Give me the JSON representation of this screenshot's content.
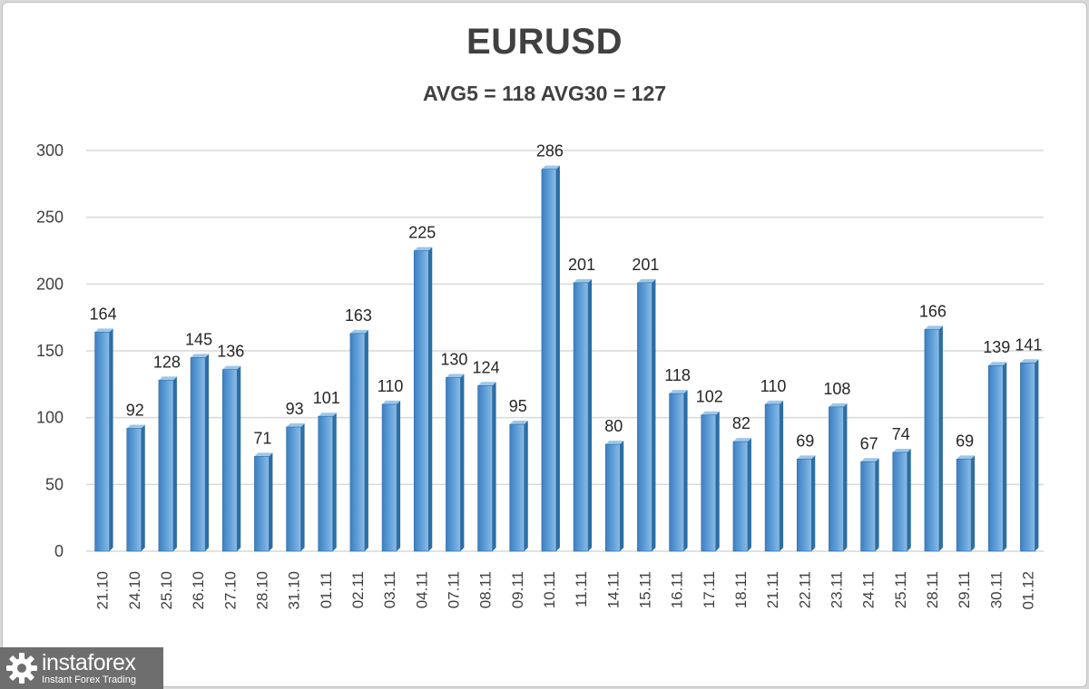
{
  "title": "EURUSD",
  "subtitle": "AVG5 = 118 AVG30 = 127",
  "logo": {
    "name": "instaforex",
    "tagline": "Instant Forex Trading"
  },
  "colors": {
    "bar": "#5b9bd5",
    "bar_dark": "#2e6da4",
    "grid": "#d9d9d9"
  },
  "chart_data": {
    "type": "bar",
    "title": "EURUSD",
    "subtitle": "AVG5 = 118 AVG30 = 127",
    "categories": [
      "21.10",
      "24.10",
      "25.10",
      "26.10",
      "27.10",
      "28.10",
      "31.10",
      "01.11",
      "02.11",
      "03.11",
      "04.11",
      "07.11",
      "08.11",
      "09.11",
      "10.11",
      "11.11",
      "14.11",
      "15.11",
      "16.11",
      "17.11",
      "18.11",
      "21.11",
      "22.11",
      "23.11",
      "24.11",
      "25.11",
      "28.11",
      "29.11",
      "30.11",
      "01.12"
    ],
    "values": [
      164,
      92,
      128,
      145,
      136,
      71,
      93,
      101,
      163,
      110,
      225,
      130,
      124,
      95,
      286,
      201,
      80,
      201,
      118,
      102,
      82,
      110,
      69,
      108,
      67,
      74,
      166,
      69,
      139,
      141
    ],
    "ylim": [
      0,
      300
    ],
    "yticks": [
      0,
      50,
      100,
      150,
      200,
      250,
      300
    ],
    "grid": true,
    "legend": "none"
  }
}
